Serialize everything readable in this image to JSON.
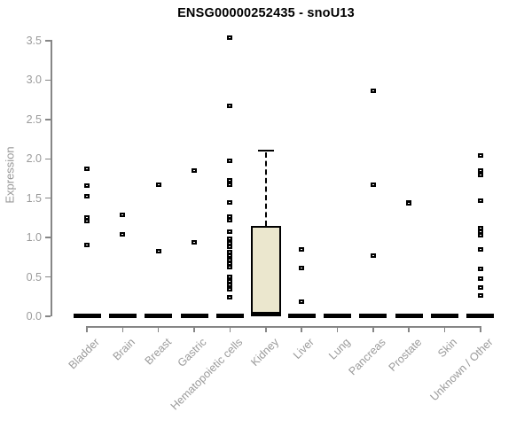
{
  "chart_data": {
    "type": "boxplot",
    "title": "ENSG00000252435 - snoU13",
    "ylabel": "Expression",
    "xlabel": "",
    "ylim": [
      0,
      3.5
    ],
    "ytick_labels": [
      "0.0",
      "0.5",
      "1.0",
      "1.5",
      "2.0",
      "2.5",
      "3.0",
      "3.5"
    ],
    "grid": false,
    "legend": false,
    "categories": [
      "Bladder",
      "Brain",
      "Breast",
      "Gastric",
      "Hematopoietic cells",
      "Kidney",
      "Liver",
      "Lung",
      "Pancreas",
      "Prostate",
      "Skin",
      "Unknown / Other"
    ],
    "groups": [
      {
        "name": "Bladder",
        "median": 0,
        "points": [
          1.87,
          1.66,
          1.53,
          1.26,
          1.21,
          0.91
        ]
      },
      {
        "name": "Brain",
        "median": 0,
        "points": [
          1.29,
          1.04
        ]
      },
      {
        "name": "Breast",
        "median": 0,
        "points": [
          1.67,
          0.83
        ]
      },
      {
        "name": "Gastric",
        "median": 0,
        "points": [
          1.85,
          0.94
        ]
      },
      {
        "name": "Hematopoietic cells",
        "median": 0,
        "points": [
          3.54,
          2.67,
          1.97,
          1.73,
          1.67,
          1.45,
          1.27,
          1.22,
          1.08,
          0.98,
          0.93,
          0.88,
          0.82,
          0.77,
          0.72,
          0.67,
          0.62,
          0.5,
          0.45,
          0.4,
          0.34,
          0.24
        ]
      },
      {
        "name": "Kidney",
        "median": 0.02,
        "points": [],
        "box": {
          "q1": 0.03,
          "q3": 1.15,
          "median": 0.02,
          "whisker_high": 2.12
        }
      },
      {
        "name": "Liver",
        "median": 0,
        "points": [
          0.85,
          0.61,
          0.19
        ]
      },
      {
        "name": "Lung",
        "median": 0,
        "points": []
      },
      {
        "name": "Pancreas",
        "median": 0,
        "points": [
          2.86,
          1.67,
          0.77
        ]
      },
      {
        "name": "Prostate",
        "median": 0,
        "points": [
          1.45,
          1.43
        ]
      },
      {
        "name": "Skin",
        "median": 0,
        "points": []
      },
      {
        "name": "Unknown / Other",
        "median": 0,
        "points": [
          2.04,
          1.85,
          1.79,
          1.47,
          1.12,
          1.07,
          1.03,
          0.85,
          0.6,
          0.48,
          0.37,
          0.26
        ]
      }
    ],
    "colors": {
      "box_fill": "#EBE7CE",
      "box_border": "#000000",
      "point": "#000000",
      "median_bar": "#000000",
      "axis": "#868686",
      "tick_text": "#9a9a9a",
      "title_text": "#000000",
      "background": "#ffffff"
    }
  }
}
